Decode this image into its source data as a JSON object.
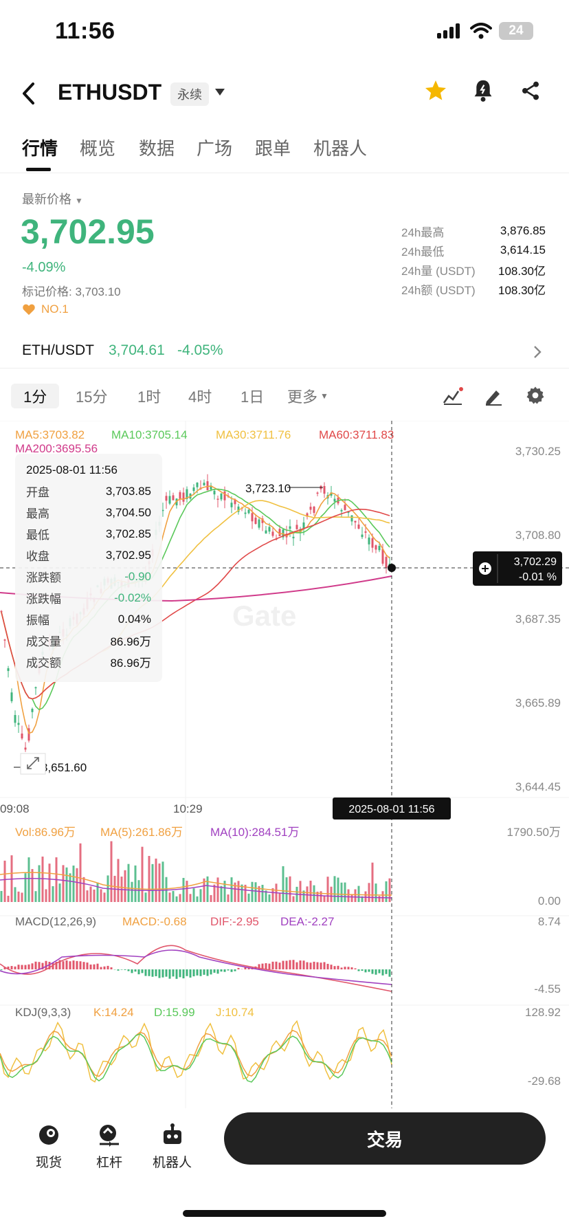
{
  "status_bar": {
    "time": "11:56",
    "battery": "24"
  },
  "header": {
    "title": "ETHUSDT",
    "tag": "永续"
  },
  "tabs": [
    {
      "label": "行情",
      "active": true
    },
    {
      "label": "概览"
    },
    {
      "label": "数据"
    },
    {
      "label": "广场"
    },
    {
      "label": "跟单"
    },
    {
      "label": "机器人"
    }
  ],
  "ticker": {
    "price_label": "最新价格",
    "last_price": "3,702.95",
    "change_pct": "-4.09%",
    "mark_price_label": "标记价格: 3,703.10",
    "rank": "NO.1",
    "stats": [
      {
        "label": "24h最高",
        "value": "3,876.85"
      },
      {
        "label": "24h最低",
        "value": "3,614.15"
      },
      {
        "label": "24h量 (USDT)",
        "value": "108.30亿"
      },
      {
        "label": "24h额 (USDT)",
        "value": "108.30亿"
      }
    ]
  },
  "spot_pair": {
    "name": "ETH/USDT",
    "price": "3,704.61",
    "change": "-4.05%"
  },
  "intervals": [
    "1分",
    "15分",
    "1时",
    "4时",
    "1日",
    "更多"
  ],
  "indicators": {
    "ma5": "MA5:3703.82",
    "ma10": "MA10:3705.14",
    "ma30": "MA30:3711.76",
    "ma60": "MA60:3711.83",
    "ma200": "MA200:3695.56"
  },
  "price_axis": [
    "3,730.25",
    "3,708.80",
    "3,687.35",
    "3,665.89",
    "3,644.45"
  ],
  "annotations": {
    "high": "3,723.10",
    "low": "3,651.60"
  },
  "current_marker": {
    "price": "3,702.29",
    "change": "-0.01 %"
  },
  "time_axis": [
    "09:08",
    "10:29"
  ],
  "crosshair_time": "2025-08-01 11:56",
  "tooltip": {
    "time": "2025-08-01 11:56",
    "rows": [
      {
        "label": "开盘",
        "value": "3,703.85"
      },
      {
        "label": "最高",
        "value": "3,704.50"
      },
      {
        "label": "最低",
        "value": "3,702.85"
      },
      {
        "label": "收盘",
        "value": "3,702.95"
      },
      {
        "label": "涨跌额",
        "value": "-0.90"
      },
      {
        "label": "涨跌幅",
        "value": "-0.02%"
      },
      {
        "label": "振幅",
        "value": "0.04%"
      },
      {
        "label": "成交量",
        "value": "86.96万"
      },
      {
        "label": "成交额",
        "value": "86.96万"
      }
    ]
  },
  "volume": {
    "vol": "Vol:86.96万",
    "ma5": "MA(5):261.86万",
    "ma10": "MA(10):284.51万",
    "top": "1790.50万",
    "bottom": "0.00"
  },
  "macd": {
    "label": "MACD(12,26,9)",
    "macd": "MACD:-0.68",
    "dif": "DIF:-2.95",
    "dea": "DEA:-2.27",
    "top": "8.74",
    "bottom": "-4.55"
  },
  "kdj": {
    "label": "KDJ(9,3,3)",
    "k": "K:14.24",
    "d": "D:15.99",
    "j": "J:10.74",
    "top": "128.92",
    "bottom": "-29.68"
  },
  "watermark": "Gate",
  "bottom_nav": [
    {
      "label": "现货",
      "icon": "spot-icon"
    },
    {
      "label": "杠杆",
      "icon": "margin-icon"
    },
    {
      "label": "机器人",
      "icon": "robot-icon"
    }
  ],
  "trade_button": "交易",
  "colors": {
    "up": "#3fb47c",
    "down": "#e0556a",
    "ma5": "#f0a040",
    "ma10": "#5ac85a",
    "ma30": "#f0c040",
    "ma60": "#e04848",
    "ma200": "#d03a8a",
    "accent": "#f5b700"
  }
}
